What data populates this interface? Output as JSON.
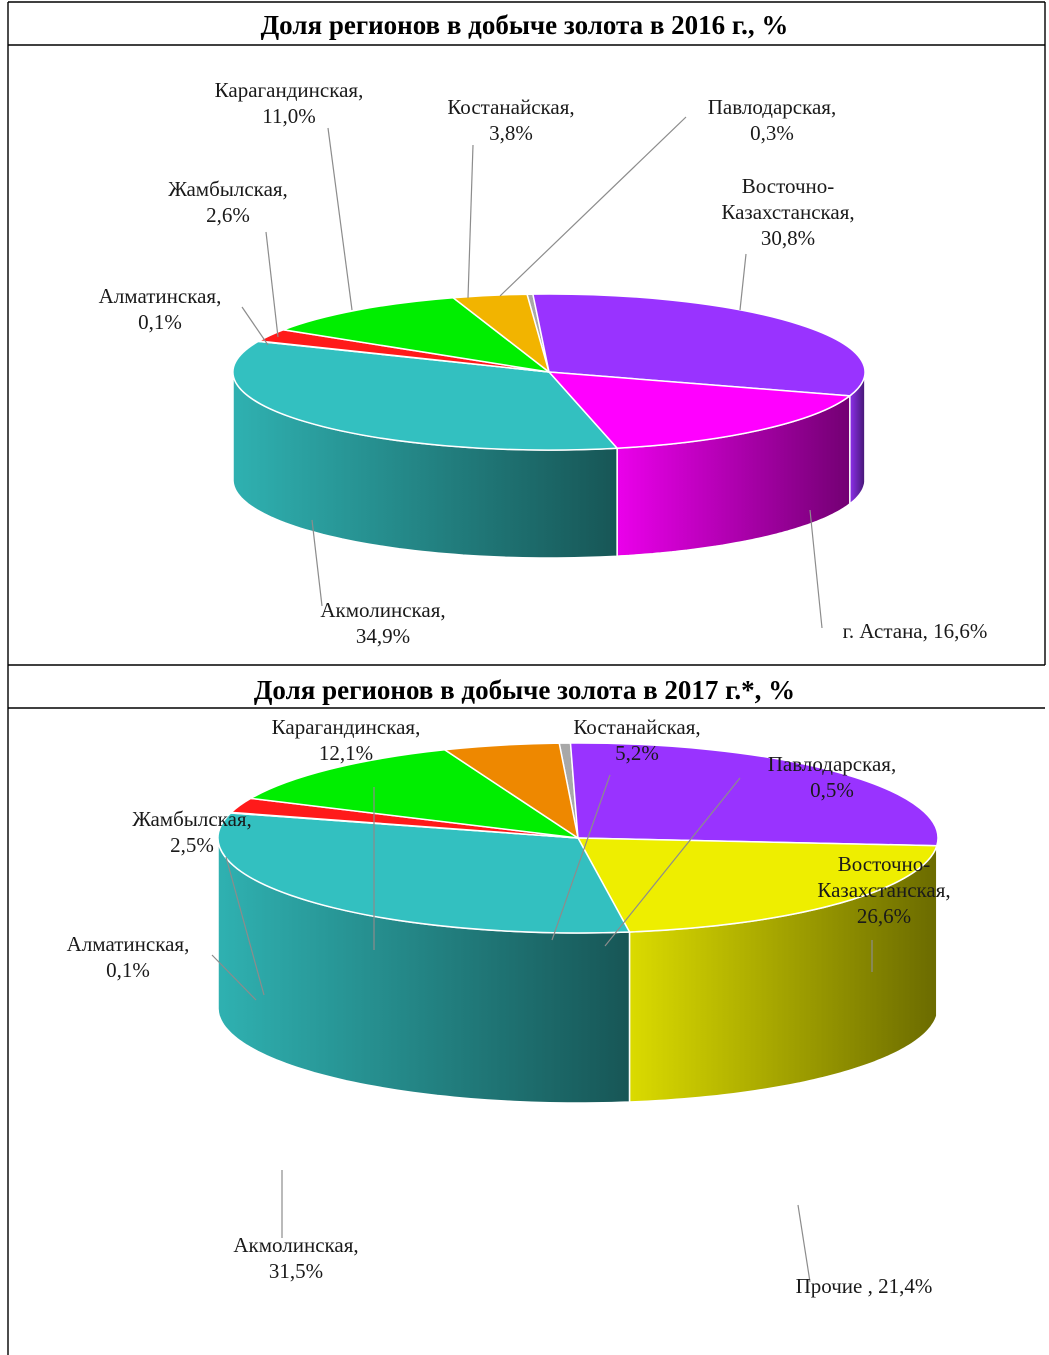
{
  "chart_data": [
    {
      "type": "pie",
      "title": "Доля регионов в добыче золота в 2016 г., %",
      "slices": [
        {
          "label_lines": [
            "Павлодарская,",
            "0,3%"
          ],
          "value": 0.3,
          "color": "#a8a8a8"
        },
        {
          "label_lines": [
            "Восточно-",
            "Казахстанская,",
            "30,8%"
          ],
          "value": 30.8,
          "color": "#9933ff"
        },
        {
          "label_lines": [
            "г. Астана, 16,6%"
          ],
          "value": 16.6,
          "color": "#ff00ff"
        },
        {
          "label_lines": [
            "Акмолинская,",
            "34,9%"
          ],
          "value": 34.9,
          "color": "#33c0c0"
        },
        {
          "label_lines": [
            "Алматинская,",
            "0,1%"
          ],
          "value": 0.1,
          "color": "#f2f2f2"
        },
        {
          "label_lines": [
            "Жамбылская,",
            "2,6%"
          ],
          "value": 2.6,
          "color": "#ff1a1a"
        },
        {
          "label_lines": [
            "Карагандинская,",
            "11,0%"
          ],
          "value": 11.0,
          "color": "#00ee00"
        },
        {
          "label_lines": [
            "Костанайская,",
            "3,8%"
          ],
          "value": 3.8,
          "color": "#f2b400"
        }
      ]
    },
    {
      "type": "pie",
      "title": "Доля регионов в добыче золота в 2017 г.*, %",
      "slices": [
        {
          "label_lines": [
            "Павлодарская,",
            "0,5%"
          ],
          "value": 0.5,
          "color": "#a8a8a8"
        },
        {
          "label_lines": [
            "Восточно-",
            "Казахстанская,",
            "26,6%"
          ],
          "value": 26.6,
          "color": "#9933ff"
        },
        {
          "label_lines": [
            "Прочие , 21,4%"
          ],
          "value": 21.4,
          "color": "#eeee00"
        },
        {
          "label_lines": [
            "Акмолинская,",
            "31,5%"
          ],
          "value": 31.5,
          "color": "#33c0c0"
        },
        {
          "label_lines": [
            "Алматинская,",
            "0,1%"
          ],
          "value": 0.1,
          "color": "#f2f2f2"
        },
        {
          "label_lines": [
            "Жамбылская,",
            "2,5%"
          ],
          "value": 2.5,
          "color": "#ff1a1a"
        },
        {
          "label_lines": [
            "Карагандинская,",
            "12,1%"
          ],
          "value": 12.1,
          "color": "#00ee00"
        },
        {
          "label_lines": [
            "Костанайская,",
            "5,2%"
          ],
          "value": 5.2,
          "color": "#ee8800"
        }
      ]
    }
  ]
}
